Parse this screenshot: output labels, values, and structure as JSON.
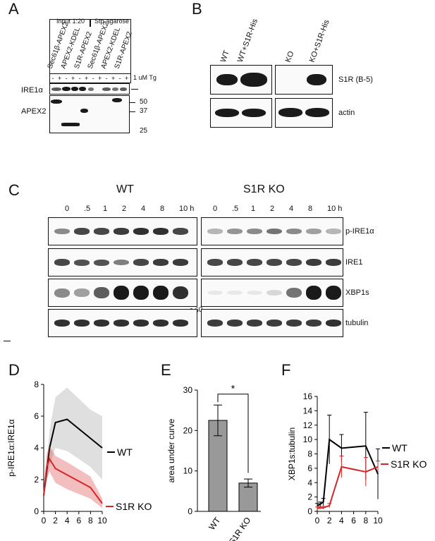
{
  "panels": {
    "A": "A",
    "B": "B",
    "C": "C",
    "D": "D",
    "E": "E",
    "F": "F"
  },
  "panelA": {
    "groups": [
      "Input 1:20",
      "Stp-agarose"
    ],
    "lanes": [
      "Sec61β-APEX2",
      "APEX2-KDEL",
      "S1R-APEX2",
      "Sec61β-APEX2",
      "APEX2-KDEL",
      "S1R-APEX2"
    ],
    "tg_signs": [
      "-",
      "+",
      "-",
      "+",
      "-",
      "+",
      "-",
      "+",
      "-",
      "+",
      "-",
      "+"
    ],
    "tg_label": "1 uM Tg",
    "rows": [
      "IRE1α",
      "APEX2"
    ],
    "mw": [
      "50",
      "37",
      "25"
    ]
  },
  "panelB": {
    "lanes": [
      "WT",
      "WT+S1R-His",
      "KO",
      "KO+S1R-His"
    ],
    "rows": [
      "S1R (B-5)",
      "actin"
    ]
  },
  "panelC": {
    "groups": [
      "WT",
      "S1R KO"
    ],
    "timepoints": [
      "0",
      ".5",
      "1",
      "2",
      "4",
      "8",
      "10 h"
    ],
    "rows": [
      "p-IRE1α",
      "IRE1",
      "XBP1s",
      "tubulin"
    ],
    "handwriting": "6 60"
  },
  "chart_data": [
    {
      "id": "D",
      "type": "line",
      "ylabel": "p-IRE1α:IRE1α",
      "xlabel": "",
      "xlim": [
        0,
        10
      ],
      "ylim": [
        0,
        8
      ],
      "xticks": [
        0,
        2,
        4,
        6,
        8,
        10
      ],
      "yticks": [
        0,
        2,
        4,
        6,
        8
      ],
      "series": [
        {
          "name": "WT",
          "color": "#000000",
          "x": [
            0,
            0.5,
            1,
            2,
            4,
            8,
            10
          ],
          "y": [
            1.0,
            2.5,
            4.0,
            5.6,
            5.8,
            4.6,
            4.0
          ],
          "band_upper": [
            1.0,
            3.2,
            5.1,
            7.2,
            7.8,
            6.4,
            6.0
          ],
          "band_lower": [
            1.0,
            1.8,
            2.9,
            4.0,
            3.8,
            2.8,
            2.0
          ]
        },
        {
          "name": "S1R KO",
          "color": "#d62728",
          "x": [
            0,
            0.5,
            1,
            2,
            4,
            8,
            10
          ],
          "y": [
            1.0,
            2.8,
            3.3,
            2.7,
            2.3,
            1.5,
            0.5
          ],
          "band_upper": [
            1.0,
            3.6,
            4.1,
            3.5,
            3.1,
            2.2,
            0.8
          ],
          "band_lower": [
            1.0,
            2.0,
            2.5,
            1.8,
            1.4,
            0.8,
            0.2
          ]
        }
      ]
    },
    {
      "id": "E",
      "type": "bar",
      "ylabel": "area under curve",
      "categories": [
        "WT",
        "S1R KO"
      ],
      "values": [
        22.5,
        7.0
      ],
      "errors": [
        3.8,
        1.0
      ],
      "ylim": [
        0,
        30
      ],
      "yticks": [
        0,
        10,
        20,
        30
      ],
      "bar_color": "#999999",
      "significance": "*"
    },
    {
      "id": "F",
      "type": "line",
      "ylabel": "XBP1s:tubulin",
      "xlim": [
        0,
        10
      ],
      "ylim": [
        0,
        16
      ],
      "xticks": [
        0,
        2,
        4,
        6,
        8,
        10
      ],
      "yticks": [
        0,
        2,
        4,
        6,
        8,
        10,
        12,
        14,
        16
      ],
      "series": [
        {
          "name": "WT",
          "color": "#000000",
          "x": [
            0,
            0.5,
            1,
            2,
            4,
            8,
            10
          ],
          "y": [
            0.8,
            1.0,
            1.3,
            10.0,
            8.8,
            9.1,
            5.2
          ],
          "err": [
            0.3,
            0.3,
            0.5,
            3.4,
            1.9,
            4.7,
            3.5
          ]
        },
        {
          "name": "S1R KO",
          "color": "#d62728",
          "x": [
            0,
            0.5,
            1,
            2,
            4,
            8,
            10
          ],
          "y": [
            0.4,
            0.5,
            0.5,
            0.8,
            6.2,
            5.5,
            6.2
          ],
          "err": [
            0.2,
            0.2,
            0.2,
            0.3,
            1.5,
            2.0,
            0.8
          ]
        }
      ]
    }
  ]
}
